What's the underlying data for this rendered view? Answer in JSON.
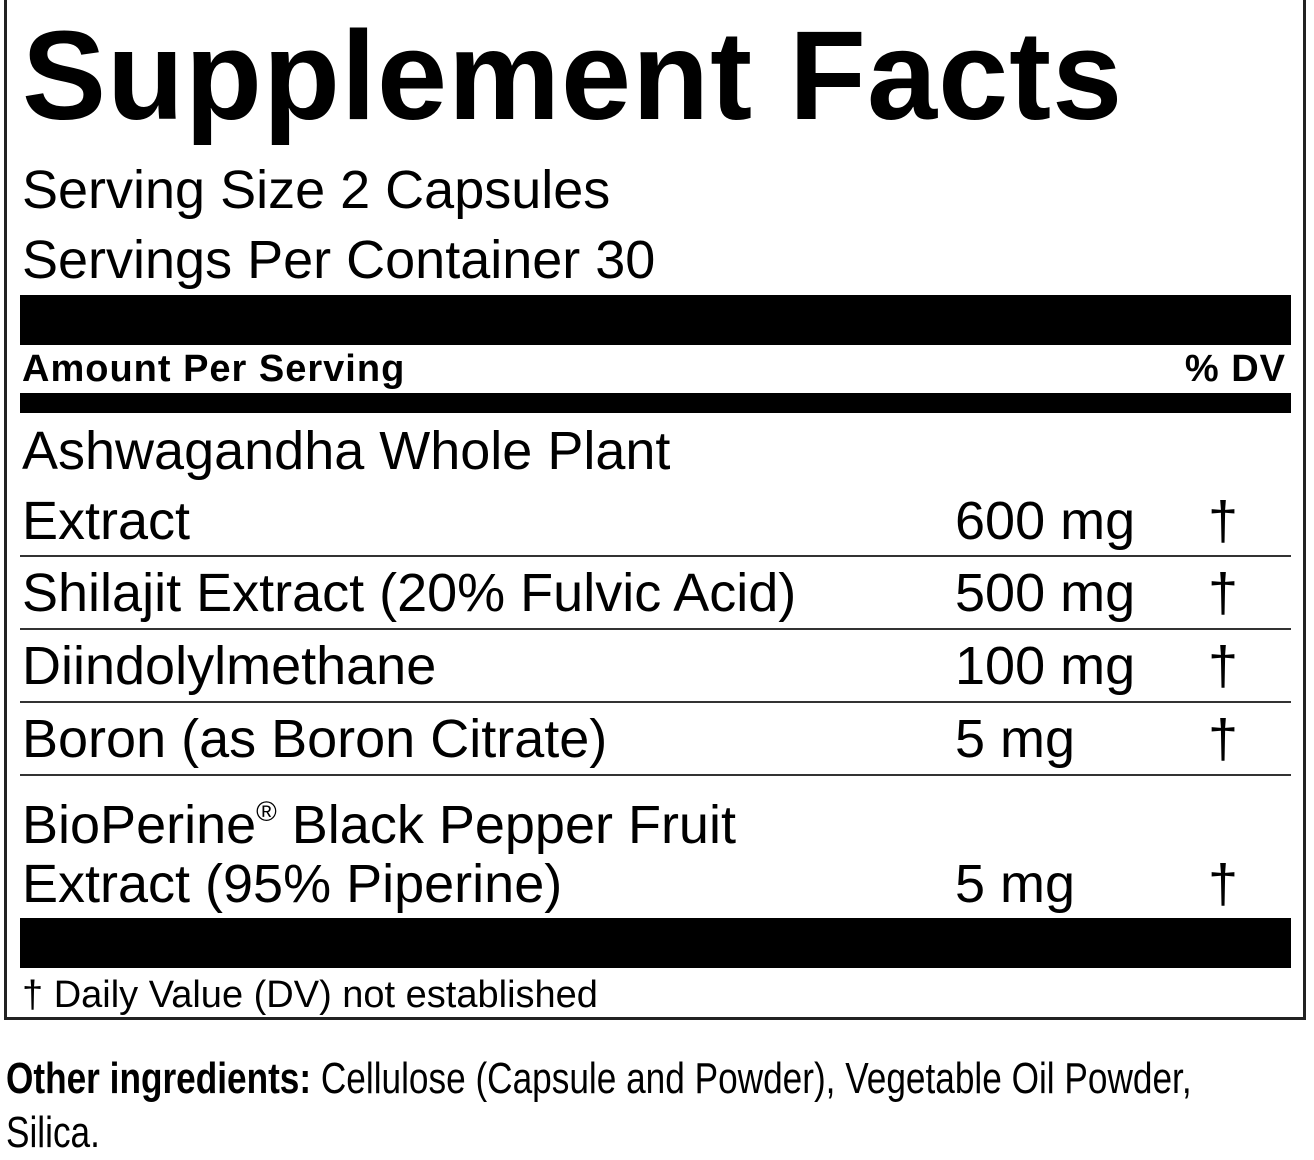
{
  "title": "Supplement Facts",
  "serving_size": "Serving Size 2 Capsules",
  "servings_per_container": "Servings Per Container 30",
  "header": {
    "amount": "Amount Per Serving",
    "dv": "% DV"
  },
  "ingredients": [
    {
      "name_line1": "Ashwagandha Whole Plant",
      "name_line2": "Extract",
      "amount": "600 mg",
      "dv": "†"
    },
    {
      "name_line1": "Shilajit Extract (20% Fulvic Acid)",
      "amount": "500 mg",
      "dv": "†"
    },
    {
      "name_line1": "Diindolylmethane",
      "amount": "100 mg",
      "dv": "†"
    },
    {
      "name_line1": "Boron (as Boron Citrate)",
      "amount": "5 mg",
      "dv": "†"
    },
    {
      "name_line1a": "BioPerine",
      "reg": "®",
      "name_line1b": " Black Pepper Fruit",
      "name_line2": "Extract (95% Piperine)",
      "amount": "5 mg",
      "dv": "†"
    }
  ],
  "footnote": "† Daily Value (DV) not established",
  "other_ingredients": {
    "label": "Other ingredients:",
    "line1": " Cellulose (Capsule and Powder), Vegetable Oil Powder,",
    "line2": "Silica."
  }
}
